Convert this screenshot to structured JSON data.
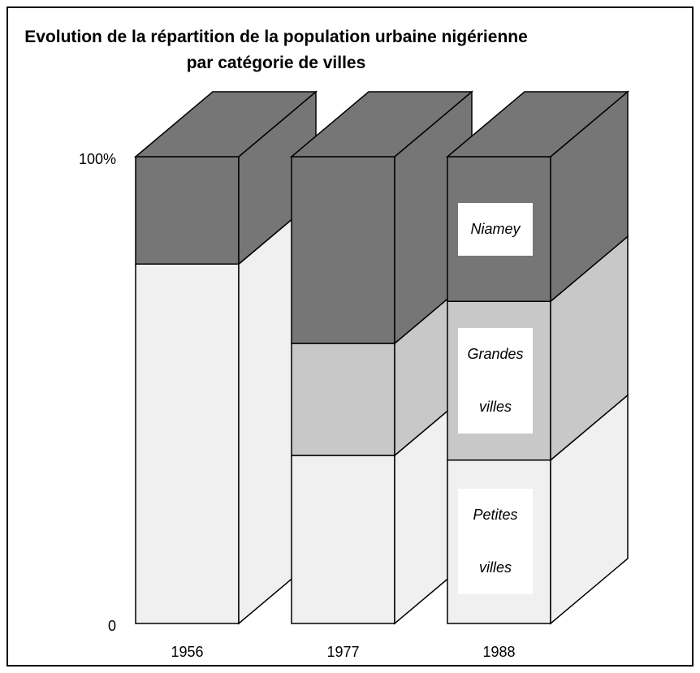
{
  "chart_data": {
    "type": "bar3d_stacked",
    "title": "Evolution de la répartition de la population urbaine nigérienne par catégorie de villes",
    "categories": [
      "1956",
      "1977",
      "1988"
    ],
    "series": [
      {
        "name": "Petites villes",
        "color": "#f0f0f0",
        "values": [
          77,
          36,
          35
        ]
      },
      {
        "name": "Grandes villes",
        "color": "#c8c8c8",
        "values": [
          0,
          24,
          34
        ]
      },
      {
        "name": "Niamey",
        "color": "#767676",
        "values": [
          23,
          40,
          31
        ]
      }
    ],
    "ylim": [
      0,
      100
    ],
    "yticks": [
      0,
      {
        "value": 100,
        "label": "100%"
      }
    ],
    "grid": false
  }
}
